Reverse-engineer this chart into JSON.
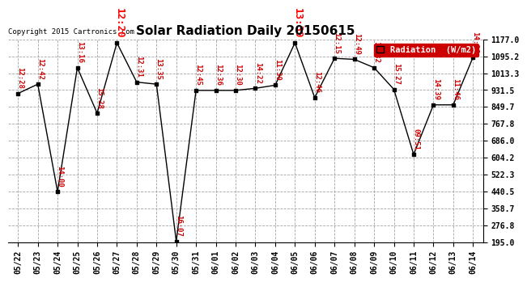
{
  "title": "Solar Radiation Daily 20150615",
  "copyright": "Copyright 2015 Cartronics.com",
  "legend_label": "Radiation  (W/m2)",
  "x_labels": [
    "05/22",
    "05/23",
    "05/24",
    "05/25",
    "05/26",
    "05/27",
    "05/28",
    "05/29",
    "05/30",
    "05/31",
    "06/01",
    "06/02",
    "06/03",
    "06/04",
    "06/05",
    "06/06",
    "06/07",
    "06/08",
    "06/09",
    "06/10",
    "06/11",
    "06/12",
    "06/13",
    "06/14"
  ],
  "y_values": [
    915,
    960,
    440,
    1040,
    820,
    1160,
    970,
    960,
    200,
    930,
    930,
    930,
    940,
    955,
    1160,
    895,
    1085,
    1080,
    1040,
    935,
    620,
    860,
    860,
    1090
  ],
  "time_labels": [
    "12:28",
    "12:42",
    "14:00",
    "13:16",
    "15:28",
    "12:20",
    "12:31",
    "13:35",
    "16:07",
    "12:45",
    "12:36",
    "12:30",
    "14:22",
    "11:30",
    "13:39",
    "12:46",
    "12:15",
    "12:49",
    "11:32",
    "15:27",
    "09:51",
    "14:39",
    "11:46",
    "14:06"
  ],
  "y_min": 195.0,
  "y_max": 1177.0,
  "y_ticks": [
    195.0,
    276.8,
    358.7,
    440.5,
    522.3,
    604.2,
    686.0,
    767.8,
    849.7,
    931.5,
    1013.3,
    1095.2,
    1177.0
  ],
  "line_color": "#000000",
  "dot_color": "#000000",
  "background_color": "#ffffff",
  "grid_color": "#999999",
  "label_color_normal": "#cc0000",
  "label_color_highlight": "#ff0000",
  "highlight_indices": [
    5,
    14
  ]
}
